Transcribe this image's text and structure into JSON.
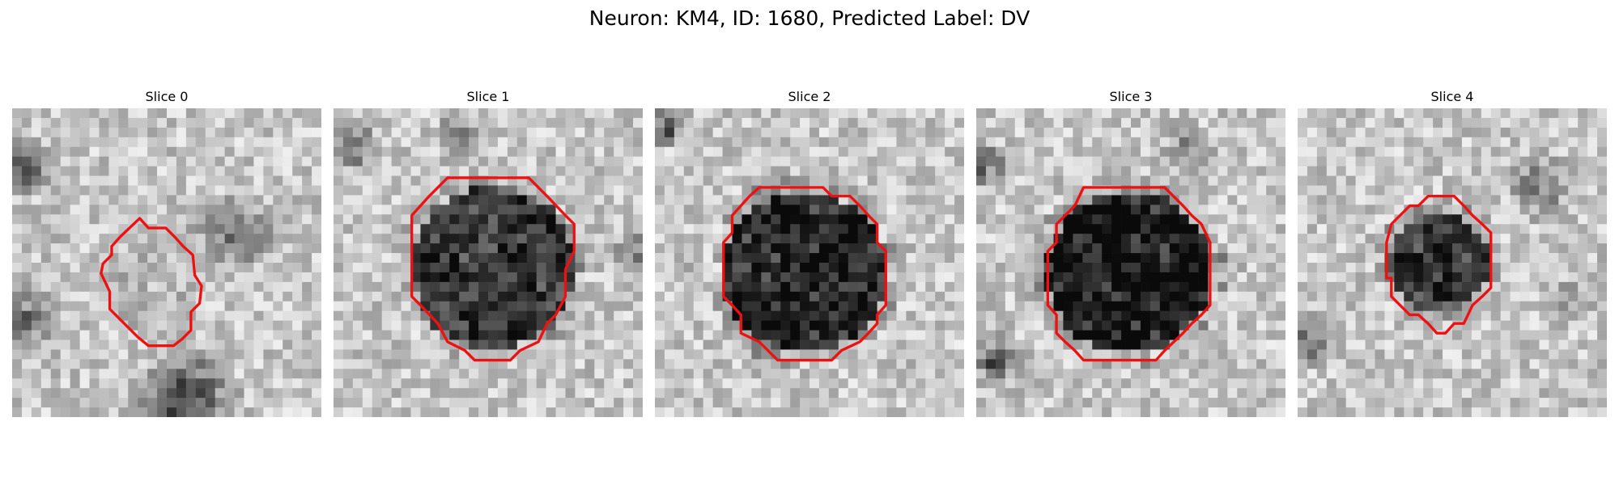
{
  "figure": {
    "title": "Neuron: KM4, ID: 1680, Predicted Label: DV",
    "contour_color": "#ee1111"
  },
  "panels": [
    {
      "label": "Slice 0",
      "dark_disc_strength": 0.05,
      "contour": "small, irregular"
    },
    {
      "label": "Slice 1",
      "dark_disc_strength": 0.6,
      "contour": "large octagon"
    },
    {
      "label": "Slice 2",
      "dark_disc_strength": 0.7,
      "contour": "large octagon"
    },
    {
      "label": "Slice 3",
      "dark_disc_strength": 0.75,
      "contour": "large octagon"
    },
    {
      "label": "Slice 4",
      "dark_disc_strength": 0.6,
      "contour": "small octagon"
    }
  ]
}
